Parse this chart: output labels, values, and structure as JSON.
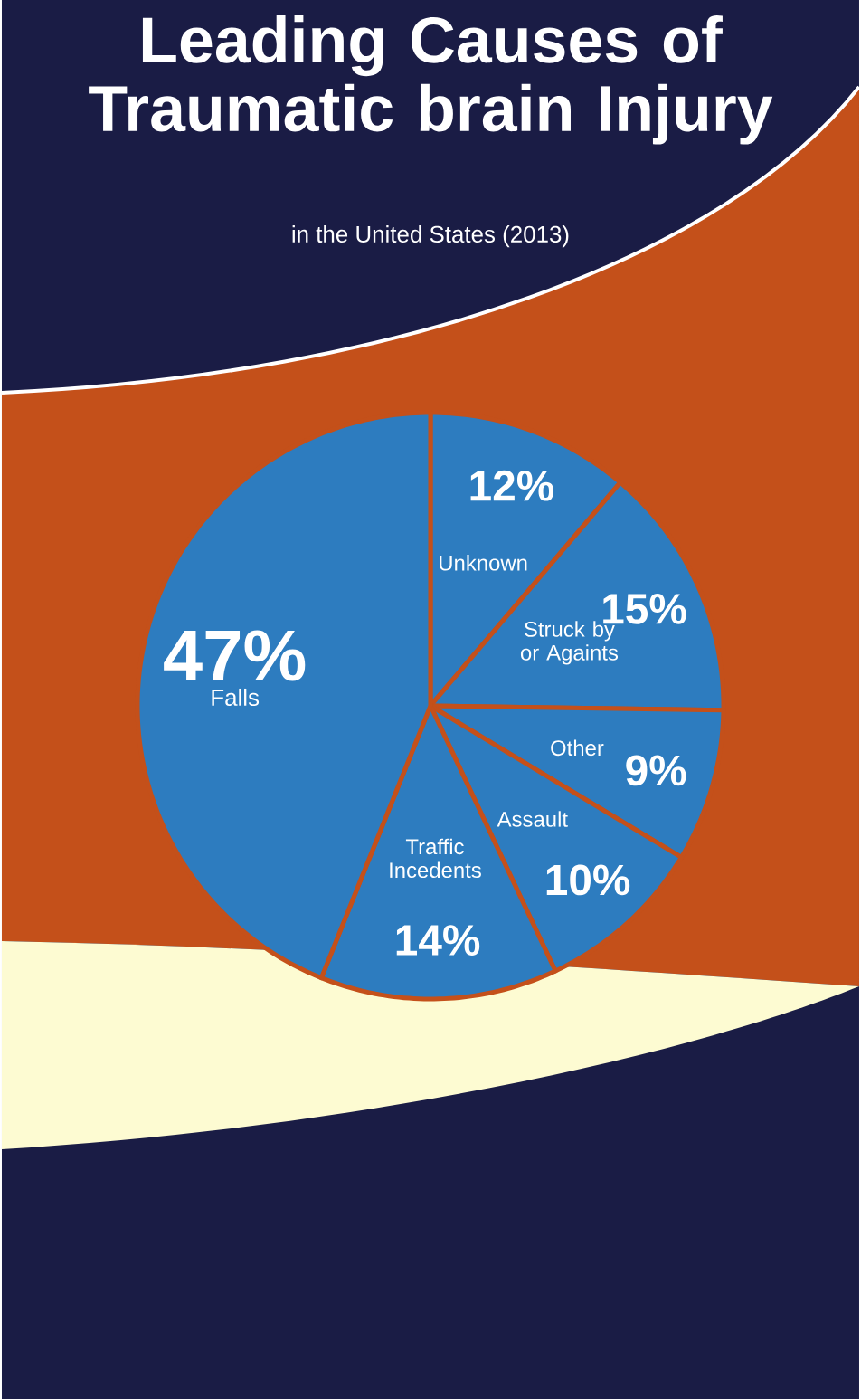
{
  "chart_data": {
    "type": "pie",
    "title": "Leading Causes of Traumatic brain Injury",
    "subtitle": "in the United States (2013)",
    "categories": [
      "Unknown",
      "Struck by or Againts",
      "Other",
      "Assault",
      "Traffic Incedents",
      "Falls"
    ],
    "values": [
      12,
      15,
      9,
      10,
      14,
      47
    ],
    "value_labels": [
      "12%",
      "15%",
      "9%",
      "10%",
      "14%",
      "47%"
    ],
    "colors": [
      "#2d7cbf",
      "#2d7cbf",
      "#2d7cbf",
      "#2d7cbf",
      "#2d7cbf",
      "#2d7cbf"
    ]
  }
}
